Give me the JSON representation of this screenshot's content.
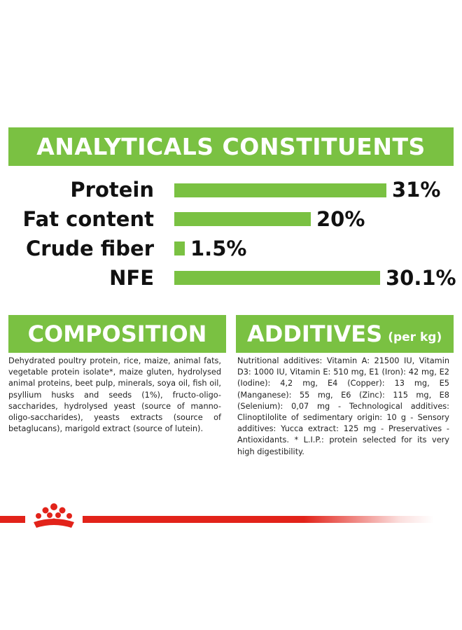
{
  "analytics": {
    "title": "ANALYTICALS CONSTITUENTS",
    "rows": [
      {
        "label": "Protein",
        "value": "31%",
        "fraction": 1.0
      },
      {
        "label": "Fat content",
        "value": "20%",
        "fraction": 0.645
      },
      {
        "label": "Crude fiber",
        "value": "1.5%",
        "fraction": 0.048
      },
      {
        "label": "NFE",
        "value": "30.1%",
        "fraction": 0.971
      }
    ]
  },
  "composition": {
    "title": "COMPOSITION",
    "text": "Dehydrated poultry protein, rice, maize, animal fats, vegetable protein isolate*, maize gluten, hydrolysed animal proteins, beet pulp, minerals, soya oil, fish oil, psyllium husks and seeds (1%), fructo-oligo-saccharides, hydrolysed yeast (source of manno-oligo-saccharides), yeasts extracts (source of betaglucans), marigold extract (source of lutein)."
  },
  "additives": {
    "title": "ADDITIVES",
    "subtitle": "(per kg)",
    "text": "Nutritional additives: Vitamin A: 21500 IU, Vitamin D3: 1000 IU, Vitamin E: 510 mg, E1 (Iron): 42 mg, E2 (Iodine): 4,2 mg, E4 (Copper): 13 mg, E5 (Manganese): 55 mg, E6 (Zinc): 115 mg, E8 (Selenium): 0,07 mg - Technological additives: Clinoptilolite of sedimentary origin: 10 g - Sensory additives: Yucca extract: 125 mg - Preservatives - Antioxidants. * L.I.P.: protein selected for its very high digestibility."
  },
  "colors": {
    "accent_green": "#7ac142",
    "brand_red": "#e2231a"
  },
  "footer": {
    "logo_icon": "royal-canin-crown-icon"
  }
}
